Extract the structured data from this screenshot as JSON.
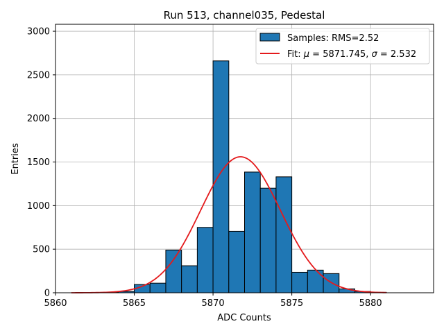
{
  "chart_data": {
    "type": "bar",
    "title": "Run 513, channel035, Pedestal",
    "xlabel": "ADC Counts",
    "ylabel": "Entries",
    "xlim": [
      5860,
      5884
    ],
    "ylim": [
      0,
      3080
    ],
    "xticks": [
      5860,
      5865,
      5870,
      5875,
      5880
    ],
    "yticks": [
      0,
      500,
      1000,
      1500,
      2000,
      2500,
      3000
    ],
    "grid": true,
    "legend_placement": "top-right",
    "histogram": {
      "legend": "Samples: RMS=2.52",
      "color": "#1f77b4",
      "edge_color": "#000000",
      "bin_width": 1,
      "bins": [
        {
          "x0": 5861,
          "value": 0
        },
        {
          "x0": 5862,
          "value": 0
        },
        {
          "x0": 5863,
          "value": 5
        },
        {
          "x0": 5864,
          "value": 15
        },
        {
          "x0": 5865,
          "value": 95
        },
        {
          "x0": 5866,
          "value": 110
        },
        {
          "x0": 5867,
          "value": 490
        },
        {
          "x0": 5868,
          "value": 310
        },
        {
          "x0": 5869,
          "value": 750
        },
        {
          "x0": 5870,
          "value": 2660
        },
        {
          "x0": 5871,
          "value": 705
        },
        {
          "x0": 5872,
          "value": 1385
        },
        {
          "x0": 5873,
          "value": 1200
        },
        {
          "x0": 5874,
          "value": 1330
        },
        {
          "x0": 5875,
          "value": 235
        },
        {
          "x0": 5876,
          "value": 260
        },
        {
          "x0": 5877,
          "value": 220
        },
        {
          "x0": 5878,
          "value": 45
        },
        {
          "x0": 5879,
          "value": 15
        },
        {
          "x0": 5880,
          "value": 5
        }
      ]
    },
    "fit": {
      "legend_prefix": "Fit: ",
      "mu_symbol": "μ",
      "mu_value": " = 5871.745, ",
      "sigma_symbol": "σ",
      "sigma_value": " = 2.532",
      "color": "#e41a1c",
      "mu": 5871.745,
      "sigma": 2.532,
      "amplitude": 1560,
      "x_range": [
        5861,
        5881
      ]
    }
  }
}
